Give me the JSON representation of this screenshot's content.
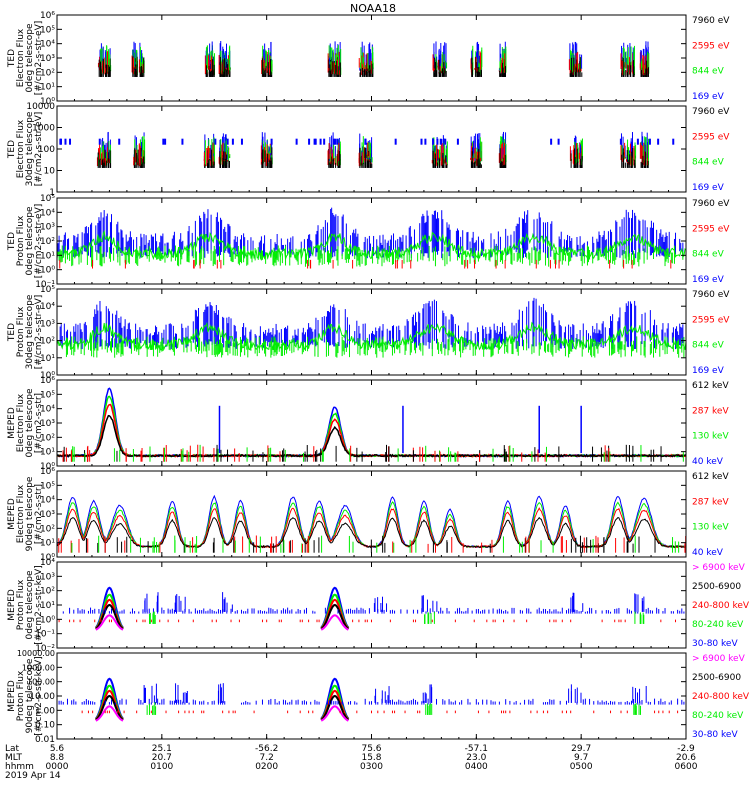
{
  "title": "NOAA18",
  "colors": {
    "black": "#000000",
    "red": "#ff0000",
    "green": "#00ee00",
    "blue": "#0000ff",
    "magenta": "#ff00ff"
  },
  "chart_data": {
    "type": "line",
    "title": "NOAA18",
    "x_tick_rows": {
      "labels": [
        "Lat",
        "MLT",
        "hhmm"
      ],
      "lat": [
        "5.6",
        "25.1",
        "-56.2",
        "75.6",
        "-57.1",
        "29.7",
        "-2.9"
      ],
      "mlt": [
        "8.8",
        "20.7",
        "7.2",
        "15.8",
        "23.0",
        "9.7",
        "20.6"
      ],
      "hhmm": [
        "0000",
        "0100",
        "0200",
        "0300",
        "0400",
        "0500",
        "0600"
      ]
    },
    "date": "2019 Apr 14",
    "xlim": [
      "0000",
      "0600"
    ],
    "panels": [
      {
        "ylabel": [
          "TED",
          "Electron Flux",
          "0deg telescope",
          "[#/cm2-s-str-eV]"
        ],
        "yscale": "log",
        "ylim": [
          1,
          1000000
        ],
        "yticks": [
          "10⁰",
          "10¹",
          "10²",
          "10³",
          "10⁴",
          "10⁵",
          "10⁶"
        ],
        "legend": [
          {
            "label": "7960 eV",
            "color": "black"
          },
          {
            "label": "2595 eV",
            "color": "red"
          },
          {
            "label": "844 eV",
            "color": "green"
          },
          {
            "label": "169 eV",
            "color": "blue"
          }
        ]
      },
      {
        "ylabel": [
          "TED",
          "Electron Flux",
          "30deg telescope",
          "[#/cm2-s-str-eV]"
        ],
        "yscale": "log",
        "ylim": [
          1,
          10000
        ],
        "yticks": [
          "1",
          "10",
          "100",
          "1000",
          "10000"
        ],
        "legend": [
          {
            "label": "7960 eV",
            "color": "black"
          },
          {
            "label": "2595 eV",
            "color": "red"
          },
          {
            "label": "844 eV",
            "color": "green"
          },
          {
            "label": "169 eV",
            "color": "blue"
          }
        ]
      },
      {
        "ylabel": [
          "TED",
          "Proton Flux",
          "0deg telescope",
          "[#/cm2-s-str-eV]"
        ],
        "yscale": "log",
        "ylim": [
          0.1,
          100000
        ],
        "yticks": [
          "10⁻¹",
          "10⁰",
          "10¹",
          "10²",
          "10³",
          "10⁴",
          "10⁵"
        ],
        "legend": [
          {
            "label": "7960 eV",
            "color": "black"
          },
          {
            "label": "2595 eV",
            "color": "red"
          },
          {
            "label": "844 eV",
            "color": "green"
          },
          {
            "label": "169 eV",
            "color": "blue"
          }
        ]
      },
      {
        "ylabel": [
          "TED",
          "Proton Flux",
          "30deg telescope",
          "[#/cm2-s-str-eV]"
        ],
        "yscale": "log",
        "ylim": [
          1,
          100000
        ],
        "yticks": [
          "10⁰",
          "10¹",
          "10²",
          "10³",
          "10⁴",
          "10⁵"
        ],
        "legend": [
          {
            "label": "7960 eV",
            "color": "black"
          },
          {
            "label": "2595 eV",
            "color": "red"
          },
          {
            "label": "844 eV",
            "color": "green"
          },
          {
            "label": "169 eV",
            "color": "blue"
          }
        ]
      },
      {
        "ylabel": [
          "MEPED",
          "Electron Flux",
          "0deg telescope",
          "[#/cm2-s-str]"
        ],
        "yscale": "log",
        "ylim": [
          1,
          1000000
        ],
        "yticks": [
          "10⁰",
          "10¹",
          "10²",
          "10³",
          "10⁴",
          "10⁵",
          "10⁶"
        ],
        "legend": [
          {
            "label": "612 keV",
            "color": "black"
          },
          {
            "label": "287 keV",
            "color": "red"
          },
          {
            "label": "130 keV",
            "color": "green"
          },
          {
            "label": "40 keV",
            "color": "blue"
          }
        ]
      },
      {
        "ylabel": [
          "MEPED",
          "Electron Flux",
          "90deg telescope",
          "[#/cm2-s-str]"
        ],
        "yscale": "log",
        "ylim": [
          1,
          1000000
        ],
        "yticks": [
          "10⁰",
          "10¹",
          "10²",
          "10³",
          "10⁴",
          "10⁵",
          "10⁶"
        ],
        "legend": [
          {
            "label": "612 keV",
            "color": "black"
          },
          {
            "label": "287 keV",
            "color": "red"
          },
          {
            "label": "130 keV",
            "color": "green"
          },
          {
            "label": "40 keV",
            "color": "blue"
          }
        ]
      },
      {
        "ylabel": [
          "MEPED",
          "Proton Flux",
          "0deg telescope",
          "[#/cm2-s-str-keV]"
        ],
        "yscale": "log",
        "ylim": [
          0.01,
          10000
        ],
        "yticks": [
          "10⁻²",
          "10⁻¹",
          "10⁰",
          "10¹",
          "10²",
          "10³",
          "10⁴"
        ],
        "legend": [
          {
            "label": "> 6900 keV",
            "color": "magenta"
          },
          {
            "label": "2500-6900",
            "color": "black"
          },
          {
            "label": "240-800 keV",
            "color": "red"
          },
          {
            "label": "80-240 keV",
            "color": "green"
          },
          {
            "label": "30-80 keV",
            "color": "blue"
          }
        ]
      },
      {
        "ylabel": [
          "MEPED",
          "Proton Flux",
          "90deg telescope",
          "[#/cm2-s-str-keV]"
        ],
        "yscale": "log",
        "ylim": [
          0.01,
          10000
        ],
        "yticks": [
          "0.01",
          "0.10",
          "1.00",
          "10.00",
          "100.00",
          "1000.00",
          "10000.00"
        ],
        "legend": [
          {
            "label": "> 6900 keV",
            "color": "magenta"
          },
          {
            "label": "2500-6900",
            "color": "black"
          },
          {
            "label": "240-800 keV",
            "color": "red"
          },
          {
            "label": "80-240 keV",
            "color": "green"
          },
          {
            "label": "30-80 keV",
            "color": "blue"
          }
        ]
      }
    ]
  }
}
